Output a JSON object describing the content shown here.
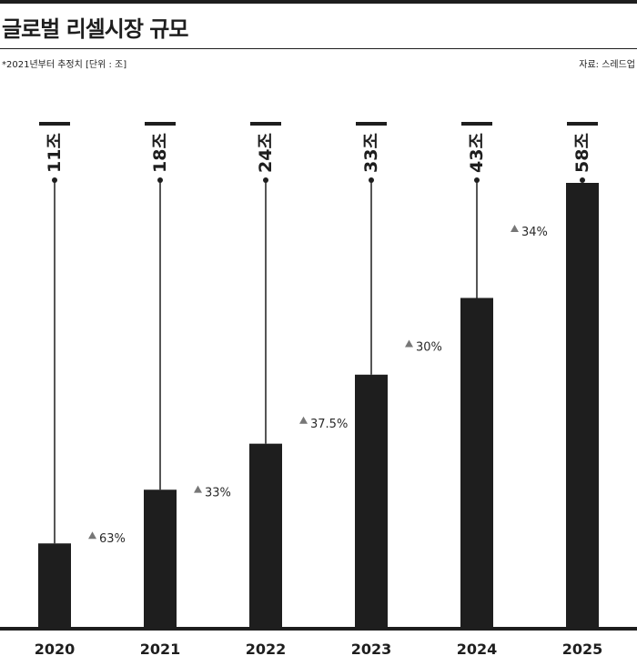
{
  "header": {
    "title": "글로벌 리셀시장 규모",
    "note": "*2021년부터 추정치 [단위 : 조]",
    "source": "자료: 스레드업"
  },
  "colors": {
    "bar": "#1e1e1e",
    "text": "#1e1e1e",
    "growth_text": "#2a2a2a",
    "growth_marker": "#777777",
    "background": "#ffffff"
  },
  "chart_data": {
    "type": "bar",
    "categories": [
      "2020",
      "2021",
      "2022",
      "2023",
      "2024",
      "2025"
    ],
    "values": [
      11,
      18,
      24,
      33,
      43,
      58
    ],
    "value_labels": [
      "11조",
      "18조",
      "24조",
      "33조",
      "43조",
      "58조"
    ],
    "growth_labels": [
      "63%",
      "33%",
      "37.5%",
      "30%",
      "34%"
    ],
    "growth_marker": "▲",
    "title": "글로벌 리셀시장 규모",
    "xlabel": "",
    "ylabel": "",
    "ylim": [
      0,
      60
    ],
    "grid": false,
    "legend": "none"
  }
}
